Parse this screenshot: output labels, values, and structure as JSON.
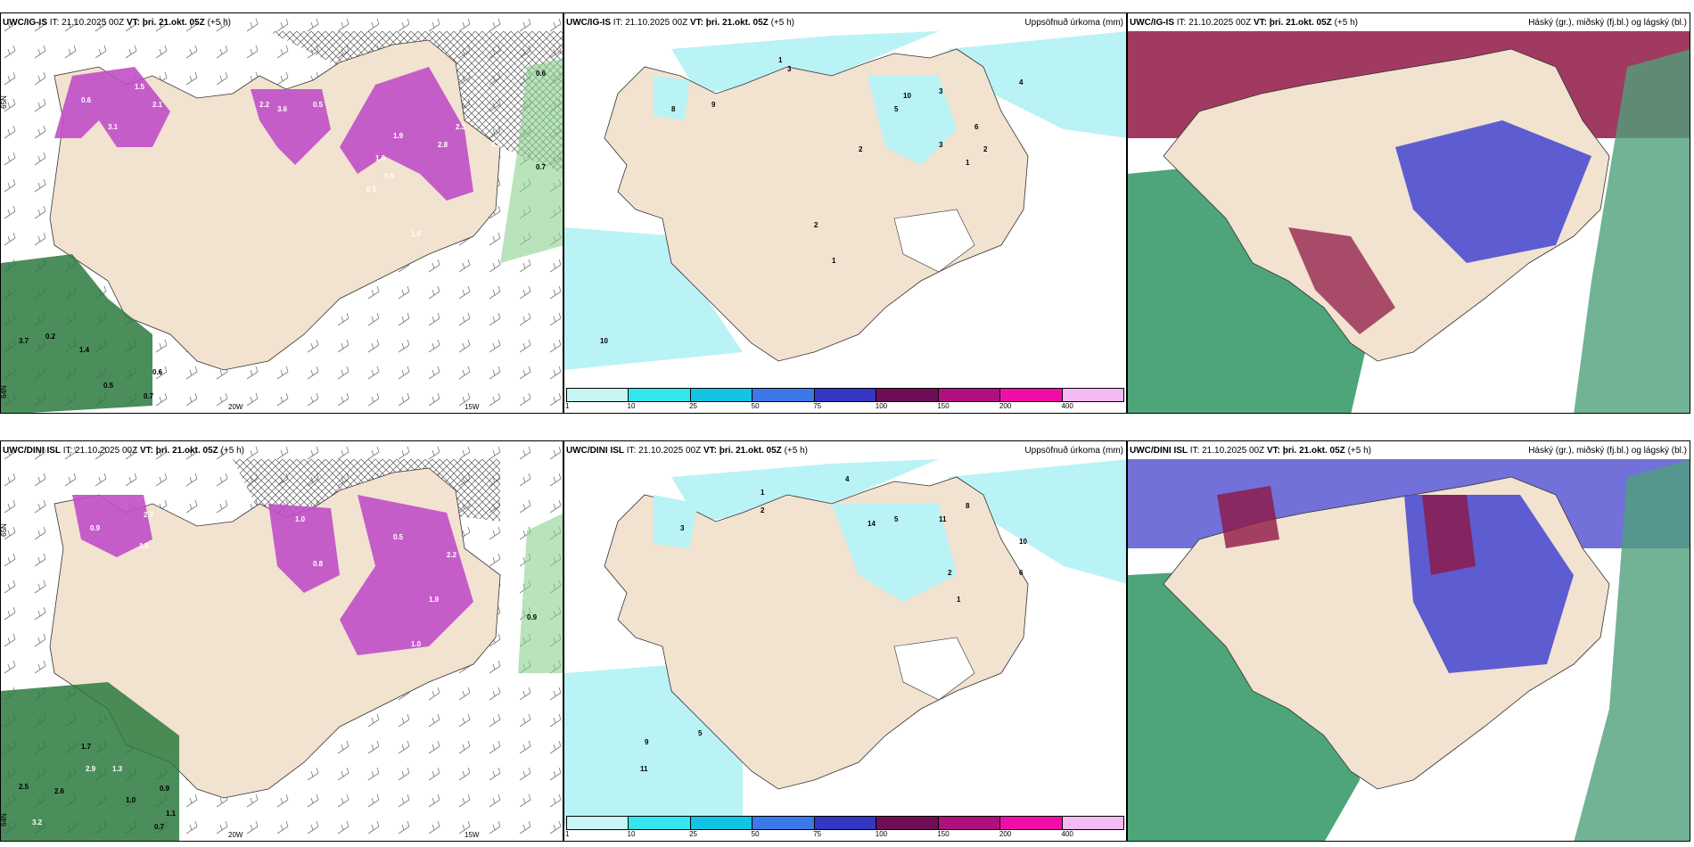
{
  "rows": [
    {
      "panels": [
        {
          "model": "UWC/IG-IS",
          "it_label": "IT:",
          "it": "21.10.2025 00Z",
          "vt_label": "VT:",
          "vt": "þri. 21.okt. 05Z",
          "lead": "(+5 h)",
          "title": "",
          "labels": [
            "1.5",
            "2.1",
            "3.6",
            "2.2",
            "3.1",
            "0.6",
            "0.5",
            "1.9",
            "4.0",
            "2.8",
            "1.6",
            "0.9",
            "2.3",
            "0.5",
            "1.0",
            "0.7",
            "0.6",
            "3.7",
            "0.2",
            "1.4",
            "0.5",
            "0.6",
            "0.7"
          ],
          "lon": [
            "20W",
            "15W"
          ],
          "lat": [
            "65N",
            "64N"
          ]
        },
        {
          "model": "UWC/IG-IS",
          "it_label": "IT:",
          "it": "21.10.2025 00Z",
          "vt_label": "VT:",
          "vt": "þri. 21.okt. 05Z",
          "lead": "(+5 h)",
          "title": "Uppsöfnuð úrkoma (mm)",
          "labels": [
            "1",
            "3",
            "10",
            "9",
            "8",
            "2",
            "5",
            "3",
            "6",
            "4",
            "1",
            "2",
            "10",
            "3",
            "2",
            "1"
          ]
        },
        {
          "model": "UWC/IG-IS",
          "it_label": "IT:",
          "it": "21.10.2025 00Z",
          "vt_label": "VT:",
          "vt": "þri. 21.okt. 05Z",
          "lead": "(+5 h)",
          "title": "Háský (gr.), miðský (fj.bl.) og lágský (bl.)"
        }
      ]
    },
    {
      "panels": [
        {
          "model": "UWC/DINI ISL",
          "it_label": "IT:",
          "it": "21.10.2025 00Z",
          "vt_label": "VT:",
          "vt": "þri. 21.okt. 05Z",
          "lead": "(+5 h)",
          "title": "",
          "labels": [
            "2.3",
            "1.5",
            "0.9",
            "1.0",
            "2.2",
            "0.5",
            "1.9",
            "0.8",
            "1.0",
            "0.9",
            "1.7",
            "2.9",
            "1.3",
            "2.5",
            "2.6",
            "0.9",
            "1.1",
            "0.7",
            "1.0",
            "3.2"
          ],
          "lon": [
            "20W",
            "15W"
          ],
          "lat": [
            "65N",
            "64N"
          ]
        },
        {
          "model": "UWC/DINI ISL",
          "it_label": "IT:",
          "it": "21.10.2025 00Z",
          "vt_label": "VT:",
          "vt": "þri. 21.okt. 05Z",
          "lead": "(+5 h)",
          "title": "Uppsöfnuð úrkoma (mm)",
          "labels": [
            "4",
            "1",
            "2",
            "3",
            "14",
            "5",
            "11",
            "8",
            "10",
            "6",
            "2",
            "1",
            "9",
            "11",
            "5"
          ]
        },
        {
          "model": "UWC/DINI ISL",
          "it_label": "IT:",
          "it": "21.10.2025 00Z",
          "vt_label": "VT:",
          "vt": "þri. 21.okt. 05Z",
          "lead": "(+5 h)",
          "title": "Háský (gr.), miðský (fj.bl.) og lágský (bl.)"
        }
      ]
    }
  ],
  "colorbar": {
    "ticks": [
      "1",
      "10",
      "25",
      "50",
      "75",
      "100",
      "150",
      "200",
      "400"
    ],
    "colors": [
      "#c8f5f5",
      "#33e6ee",
      "#12c3e6",
      "#3b78e8",
      "#3337c3",
      "#6f0d56",
      "#b0107e",
      "#f00ea8",
      "#f5b9f3"
    ]
  },
  "colors": {
    "land": "#f2e2d0",
    "precip_light": "#b9f3f6",
    "snow": "#c04fc8",
    "high_cloud": "#3a9b6a",
    "mid_cloud": "#4d4ed0",
    "low_cloud": "#8f1845"
  }
}
